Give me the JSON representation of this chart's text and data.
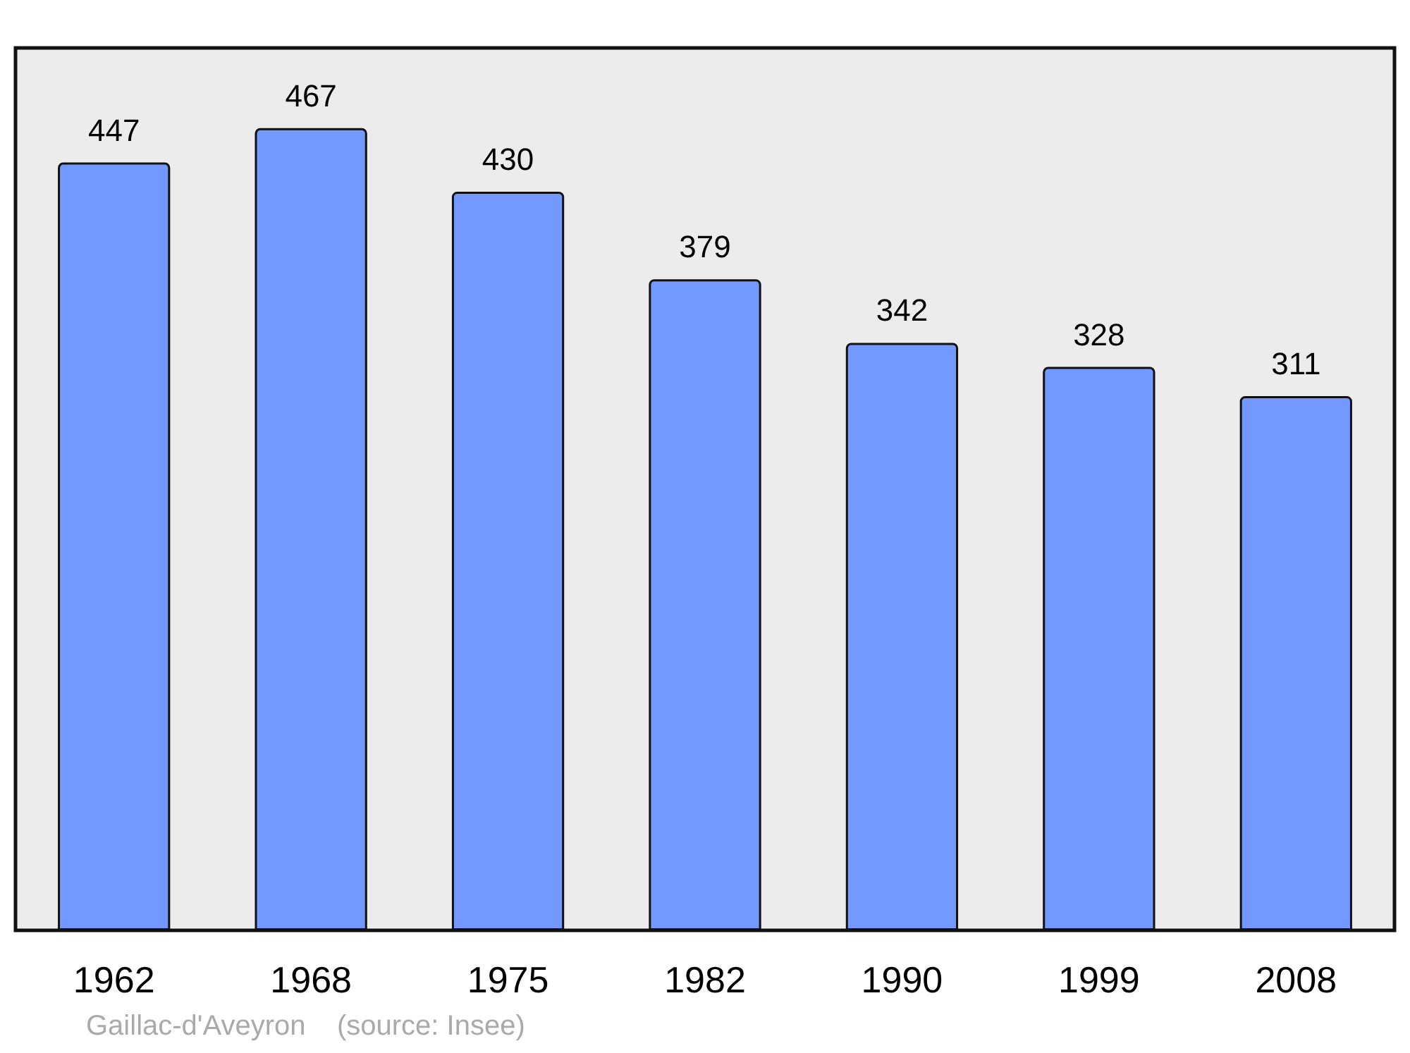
{
  "chart_data": {
    "type": "bar",
    "categories": [
      "1962",
      "1968",
      "1975",
      "1982",
      "1990",
      "1999",
      "2008"
    ],
    "values": [
      447,
      467,
      430,
      379,
      342,
      328,
      311
    ],
    "color": "#7399ff",
    "data_labels": true,
    "annotations": [
      "Gaillac-d'Aveyron    (source: Insee)"
    ]
  }
}
